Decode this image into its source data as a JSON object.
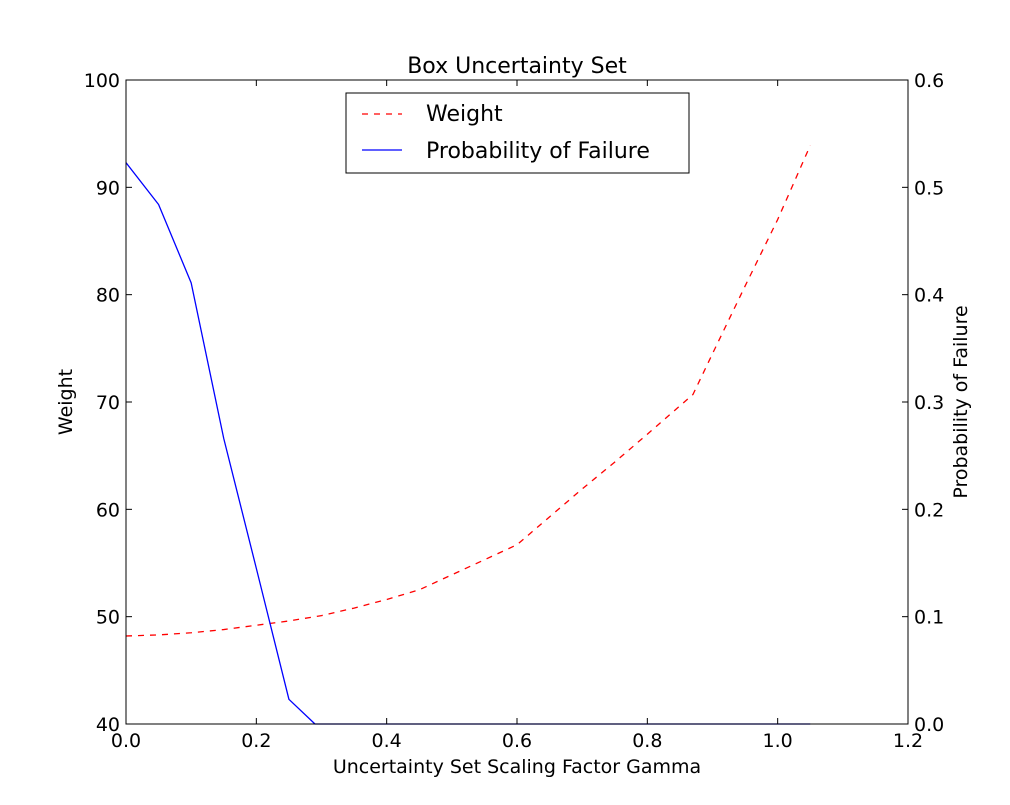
{
  "chart_data": {
    "type": "line",
    "title": "Box Uncertainty Set",
    "xlabel": "Uncertainty Set Scaling Factor Gamma",
    "ylabel_left": "Weight",
    "ylabel_right": "Probability of Failure",
    "xlim": [
      0.0,
      1.2
    ],
    "ylim_left": [
      40,
      100
    ],
    "ylim_right": [
      0.0,
      0.6
    ],
    "xticks": [
      "0.0",
      "0.2",
      "0.4",
      "0.6",
      "0.8",
      "1.0",
      "1.2"
    ],
    "yticks_left": [
      "40",
      "50",
      "60",
      "70",
      "80",
      "90",
      "100"
    ],
    "yticks_right": [
      "0.0",
      "0.1",
      "0.2",
      "0.3",
      "0.4",
      "0.5",
      "0.6"
    ],
    "grid": false,
    "legend_position": "top-center",
    "series": [
      {
        "name": "Weight",
        "axis": "left",
        "style": "dashed",
        "color": "#ff0000",
        "x": [
          0.0,
          0.05,
          0.1,
          0.15,
          0.2,
          0.25,
          0.3,
          0.35,
          0.4,
          0.45,
          0.5,
          0.55,
          0.6,
          0.65,
          0.7,
          0.75,
          0.8,
          0.87,
          0.9,
          0.95,
          1.0,
          1.05
        ],
        "values": [
          48.2,
          48.3,
          48.5,
          48.8,
          49.2,
          49.6,
          50.1,
          50.8,
          51.6,
          52.5,
          53.9,
          55.3,
          56.7,
          59.3,
          61.9,
          64.4,
          67.0,
          70.7,
          74.5,
          80.8,
          87.0,
          93.9
        ]
      },
      {
        "name": "Probability of Failure",
        "axis": "right",
        "style": "solid",
        "color": "#0000ff",
        "x": [
          0.0,
          0.05,
          0.1,
          0.15,
          0.2,
          0.25,
          0.29,
          0.3,
          0.4,
          0.5,
          0.6,
          0.7,
          0.8,
          0.9,
          1.0,
          1.05
        ],
        "values": [
          0.523,
          0.484,
          0.411,
          0.266,
          0.145,
          0.023,
          0.0,
          0.0,
          0.0,
          0.0,
          0.0,
          0.0,
          0.0,
          0.0,
          0.0,
          0.0
        ]
      }
    ]
  }
}
